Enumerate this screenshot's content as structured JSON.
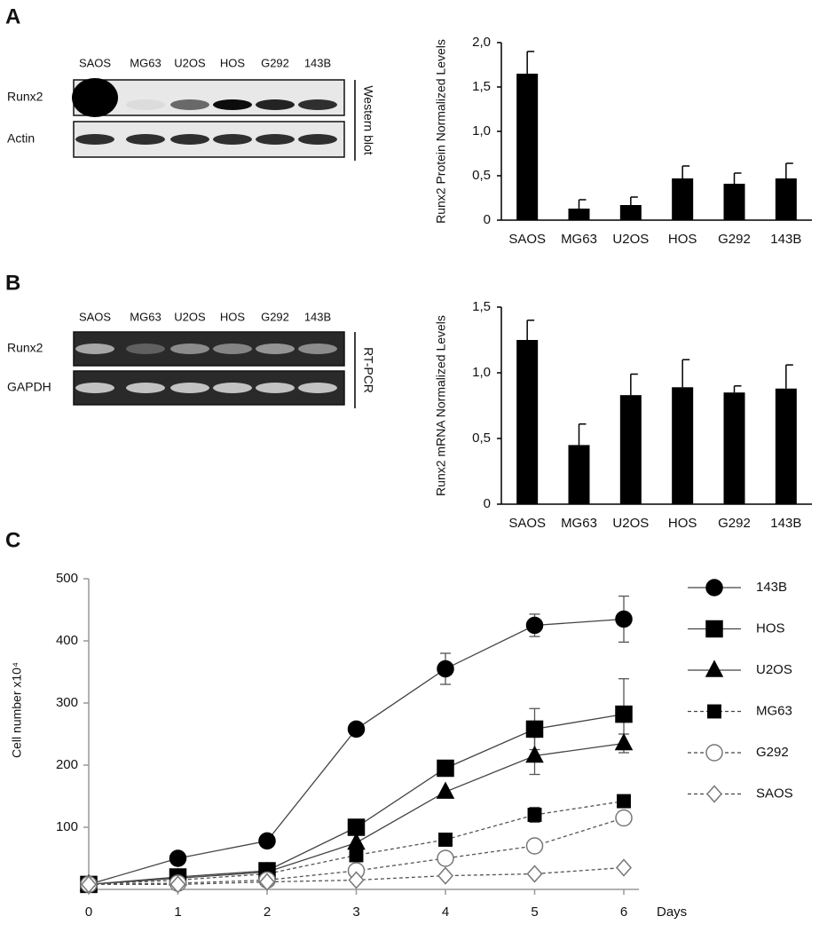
{
  "blots": [
    {
      "letter": "A",
      "lanes": [
        "SAOS",
        "MG63",
        "U2OS",
        "HOS",
        "G292",
        "143B"
      ],
      "rows": [
        "Runx2",
        "Actin"
      ],
      "method": "Western blot"
    },
    {
      "letter": "B",
      "lanes": [
        "SAOS",
        "MG63",
        "U2OS",
        "HOS",
        "G292",
        "143B"
      ],
      "rows": [
        "Runx2",
        "GAPDH"
      ],
      "method": "RT-PCR"
    }
  ],
  "chart_data": [
    {
      "type": "bar",
      "ylabel": "Runx2 Protein  Normalized  Levels",
      "categories": [
        "SAOS",
        "MG63",
        "U2OS",
        "HOS",
        "G292",
        "143B"
      ],
      "values": [
        1.65,
        0.13,
        0.17,
        0.47,
        0.41,
        0.47
      ],
      "errors": [
        0.25,
        0.1,
        0.09,
        0.14,
        0.12,
        0.17
      ],
      "color": "#000000",
      "ylim": [
        0,
        2
      ],
      "yticks": [
        0,
        {
          "value": 0.5,
          "label": "0,5"
        },
        {
          "value": 1,
          "label": "1,0"
        },
        {
          "value": 1.5,
          "label": "1,5"
        },
        {
          "value": 2,
          "label": "2,0"
        }
      ]
    },
    {
      "type": "bar",
      "ylabel": "Runx2 mRNA  Normalized  Levels",
      "categories": [
        "SAOS",
        "MG63",
        "U2OS",
        "HOS",
        "G292",
        "143B"
      ],
      "values": [
        1.25,
        0.45,
        0.83,
        0.89,
        0.85,
        0.88
      ],
      "errors": [
        0.15,
        0.16,
        0.16,
        0.21,
        0.05,
        0.18
      ],
      "color": "#000000",
      "ylim": [
        0,
        1.5
      ],
      "yticks": [
        0,
        {
          "value": 0.5,
          "label": "0,5"
        },
        {
          "value": 1,
          "label": "1,0"
        },
        {
          "value": 1.5,
          "label": "1,5"
        }
      ]
    },
    {
      "type": "line",
      "panel_label": "C",
      "ylabel": "Cell number x10⁴",
      "xlabel": "Days",
      "x": [
        0,
        1,
        2,
        3,
        4,
        5,
        6
      ],
      "xlim": [
        0,
        6
      ],
      "xticks": [
        0,
        1,
        2,
        3,
        4,
        5,
        6
      ],
      "ylim": [
        0,
        500
      ],
      "yticks": [
        100,
        200,
        300,
        400,
        500
      ],
      "series": [
        {
          "name": "143B",
          "color": "#000000",
          "marker": "circle",
          "filled": true,
          "dashed": false,
          "values": [
            8,
            50,
            78,
            258,
            355,
            425,
            435
          ],
          "errors": [
            null,
            null,
            null,
            null,
            25,
            18,
            37
          ]
        },
        {
          "name": "HOS",
          "color": "#000000",
          "marker": "square",
          "filled": true,
          "dashed": false,
          "values": [
            8,
            20,
            30,
            100,
            195,
            258,
            282
          ],
          "errors": [
            null,
            null,
            null,
            null,
            null,
            33,
            57
          ]
        },
        {
          "name": "U2OS",
          "color": "#000000",
          "marker": "triangle",
          "filled": true,
          "dashed": false,
          "values": [
            8,
            18,
            28,
            75,
            157,
            215,
            235
          ],
          "errors": [
            null,
            null,
            null,
            null,
            null,
            30,
            15
          ]
        },
        {
          "name": "MG63",
          "color": "#000000",
          "marker": "square",
          "filled": true,
          "dashed": true,
          "values": [
            8,
            15,
            25,
            55,
            80,
            120,
            142
          ],
          "errors": [
            null,
            null,
            null,
            null,
            null,
            12,
            10
          ]
        },
        {
          "name": "G292",
          "color": "#000000",
          "marker": "circle",
          "filled": false,
          "dashed": true,
          "values": [
            8,
            10,
            15,
            30,
            50,
            70,
            115
          ],
          "errors": [
            null,
            null,
            null,
            null,
            null,
            null,
            null
          ]
        },
        {
          "name": "SAOS",
          "color": "#000000",
          "marker": "diamond",
          "filled": false,
          "dashed": true,
          "values": [
            8,
            8,
            12,
            15,
            22,
            25,
            35
          ],
          "errors": [
            null,
            null,
            null,
            null,
            null,
            null,
            null
          ]
        }
      ]
    }
  ]
}
